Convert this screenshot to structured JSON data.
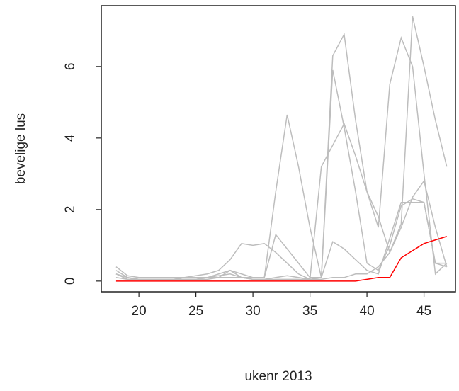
{
  "chart_data": {
    "type": "line",
    "x_label": "ukenr 2013",
    "y_label": "bevelige lus",
    "x": [
      18,
      19,
      20,
      21,
      22,
      23,
      24,
      25,
      26,
      27,
      28,
      29,
      30,
      31,
      32,
      33,
      34,
      35,
      36,
      37,
      38,
      39,
      40,
      41,
      42,
      43,
      44,
      45,
      46,
      47
    ],
    "series": [
      {
        "color": "#bdbdbd",
        "values": [
          0.3,
          0.1,
          0.05,
          0.05,
          0.05,
          0.05,
          0.05,
          0.05,
          0.1,
          0.1,
          0.1,
          0.1,
          0.1,
          0.1,
          2.5,
          4.65,
          3.2,
          1.5,
          0.1,
          6.3,
          6.9,
          4.5,
          2.5,
          1.5,
          5.5,
          6.8,
          6.0,
          3.0,
          0.2,
          0.5
        ]
      },
      {
        "color": "#bdbdbd",
        "values": [
          0.4,
          0.15,
          0.1,
          0.1,
          0.1,
          0.1,
          0.1,
          0.15,
          0.2,
          0.3,
          0.6,
          1.05,
          1.0,
          1.05,
          0.8,
          0.5,
          0.2,
          0.05,
          3.2,
          3.8,
          4.4,
          3.5,
          2.5,
          1.8,
          0.8,
          1.6,
          7.4,
          6.0,
          4.5,
          3.2
        ]
      },
      {
        "color": "#bdbdbd",
        "values": [
          0.2,
          0.05,
          0.05,
          0.05,
          0.05,
          0.05,
          0.05,
          0.05,
          0.1,
          0.2,
          0.3,
          0.2,
          0.1,
          0.1,
          1.3,
          0.9,
          0.5,
          0.1,
          0.1,
          5.9,
          4.3,
          2.5,
          0.5,
          0.3,
          1.0,
          2.1,
          2.3,
          2.2,
          0.5,
          0.4
        ]
      },
      {
        "color": "#bdbdbd",
        "values": [
          0.1,
          0.05,
          0.05,
          0.05,
          0.05,
          0.05,
          0.1,
          0.1,
          0.1,
          0.15,
          0.2,
          0.1,
          0.05,
          0.05,
          0.1,
          0.15,
          0.1,
          0.05,
          0.1,
          1.1,
          0.9,
          0.6,
          0.3,
          0.2,
          1.2,
          2.2,
          2.2,
          2.2,
          0.5,
          0.5
        ]
      },
      {
        "color": "#bdbdbd",
        "values": [
          0.2,
          0.1,
          0.05,
          0.05,
          0.05,
          0.05,
          0.05,
          0.05,
          0.05,
          0.1,
          0.3,
          0.1,
          0.05,
          0.05,
          0.05,
          0.05,
          0.05,
          0.05,
          0.05,
          0.1,
          0.1,
          0.2,
          0.2,
          0.4,
          0.8,
          1.5,
          2.35,
          2.8,
          1.5,
          0.4
        ]
      },
      {
        "color": "#ff0000",
        "values": [
          0,
          0,
          0,
          0,
          0,
          0,
          0,
          0,
          0,
          0,
          0,
          0,
          0,
          0,
          0,
          0,
          0,
          0,
          0,
          0,
          0,
          0,
          0.05,
          0.1,
          0.1,
          0.65,
          0.85,
          1.05,
          1.15,
          1.25
        ]
      }
    ],
    "xlim": [
      16.7,
      47.76
    ],
    "xticks": [
      20,
      25,
      30,
      35,
      40,
      45
    ],
    "ylim": [
      -0.3,
      7.7
    ],
    "yticks": [
      0,
      2,
      4,
      6
    ]
  }
}
